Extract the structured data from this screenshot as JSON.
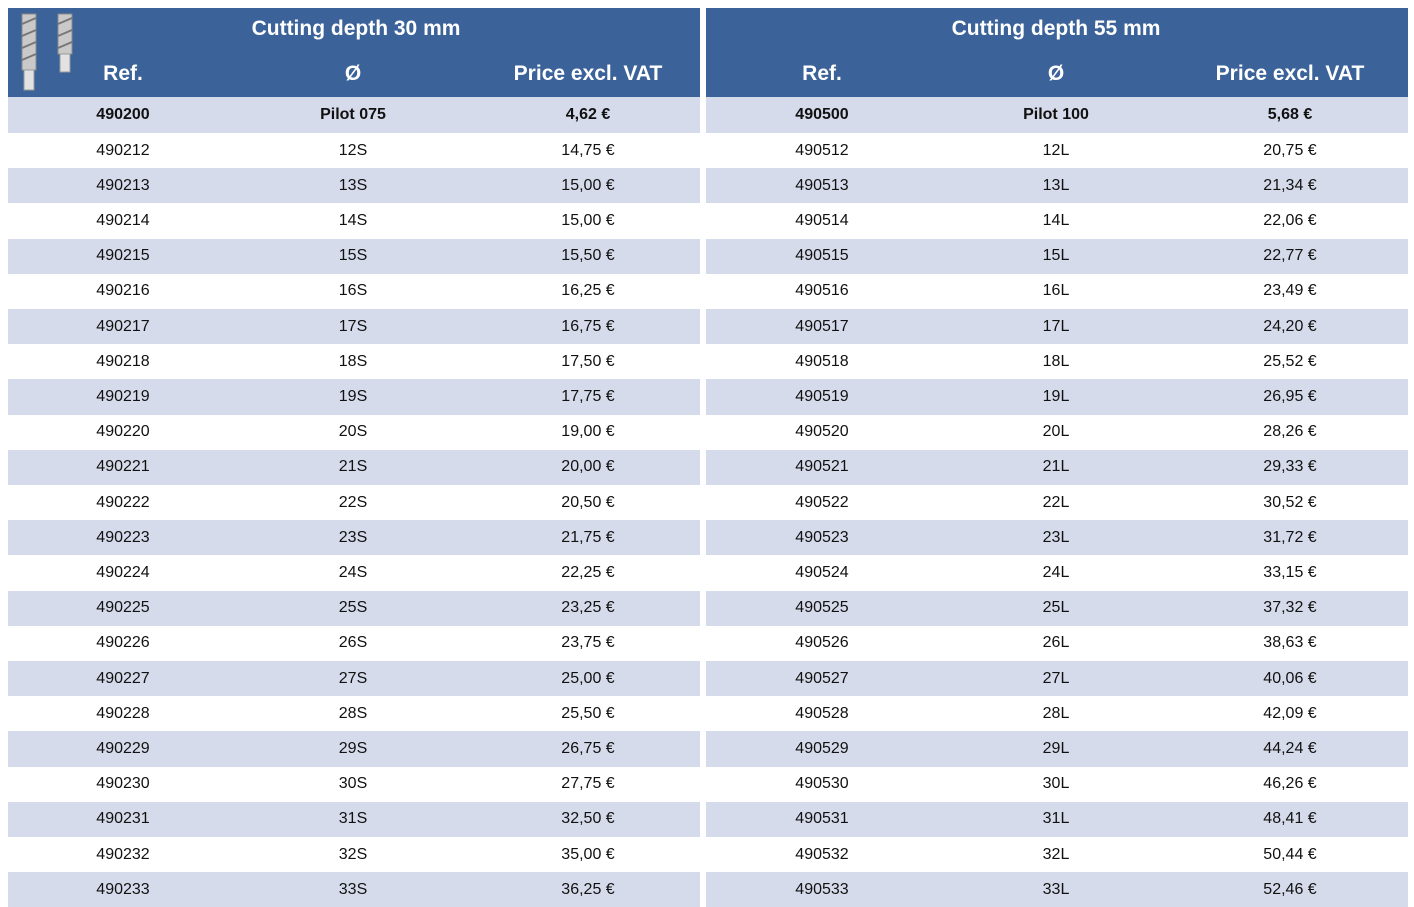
{
  "tables": [
    {
      "title": "Cutting depth 30 mm",
      "columns": [
        "Ref.",
        "Ø",
        "Price excl. VAT"
      ],
      "rows": [
        [
          "490200",
          "Pilot 075",
          "4,62 €"
        ],
        [
          "490212",
          "12S",
          "14,75 €"
        ],
        [
          "490213",
          "13S",
          "15,00 €"
        ],
        [
          "490214",
          "14S",
          "15,00 €"
        ],
        [
          "490215",
          "15S",
          "15,50 €"
        ],
        [
          "490216",
          "16S",
          "16,25 €"
        ],
        [
          "490217",
          "17S",
          "16,75 €"
        ],
        [
          "490218",
          "18S",
          "17,50 €"
        ],
        [
          "490219",
          "19S",
          "17,75 €"
        ],
        [
          "490220",
          "20S",
          "19,00 €"
        ],
        [
          "490221",
          "21S",
          "20,00 €"
        ],
        [
          "490222",
          "22S",
          "20,50 €"
        ],
        [
          "490223",
          "23S",
          "21,75 €"
        ],
        [
          "490224",
          "24S",
          "22,25 €"
        ],
        [
          "490225",
          "25S",
          "23,25 €"
        ],
        [
          "490226",
          "26S",
          "23,75 €"
        ],
        [
          "490227",
          "27S",
          "25,00 €"
        ],
        [
          "490228",
          "28S",
          "25,50 €"
        ],
        [
          "490229",
          "29S",
          "26,75 €"
        ],
        [
          "490230",
          "30S",
          "27,75 €"
        ],
        [
          "490231",
          "31S",
          "32,50 €"
        ],
        [
          "490232",
          "32S",
          "35,00 €"
        ],
        [
          "490233",
          "33S",
          "36,25 €"
        ]
      ]
    },
    {
      "title": "Cutting depth 55 mm",
      "columns": [
        "Ref.",
        "Ø",
        "Price excl. VAT"
      ],
      "rows": [
        [
          "490500",
          "Pilot 100",
          "5,68 €"
        ],
        [
          "490512",
          "12L",
          "20,75 €"
        ],
        [
          "490513",
          "13L",
          "21,34 €"
        ],
        [
          "490514",
          "14L",
          "22,06 €"
        ],
        [
          "490515",
          "15L",
          "22,77 €"
        ],
        [
          "490516",
          "16L",
          "23,49 €"
        ],
        [
          "490517",
          "17L",
          "24,20 €"
        ],
        [
          "490518",
          "18L",
          "25,52 €"
        ],
        [
          "490519",
          "19L",
          "26,95 €"
        ],
        [
          "490520",
          "20L",
          "28,26 €"
        ],
        [
          "490521",
          "21L",
          "29,33 €"
        ],
        [
          "490522",
          "22L",
          "30,52 €"
        ],
        [
          "490523",
          "23L",
          "31,72 €"
        ],
        [
          "490524",
          "24L",
          "33,15 €"
        ],
        [
          "490525",
          "25L",
          "37,32 €"
        ],
        [
          "490526",
          "26L",
          "38,63 €"
        ],
        [
          "490527",
          "27L",
          "40,06 €"
        ],
        [
          "490528",
          "28L",
          "42,09 €"
        ],
        [
          "490529",
          "29L",
          "44,24 €"
        ],
        [
          "490530",
          "30L",
          "46,26 €"
        ],
        [
          "490531",
          "31L",
          "48,41 €"
        ],
        [
          "490532",
          "32L",
          "50,44 €"
        ],
        [
          "490533",
          "33L",
          "52,46 €"
        ]
      ]
    }
  ]
}
